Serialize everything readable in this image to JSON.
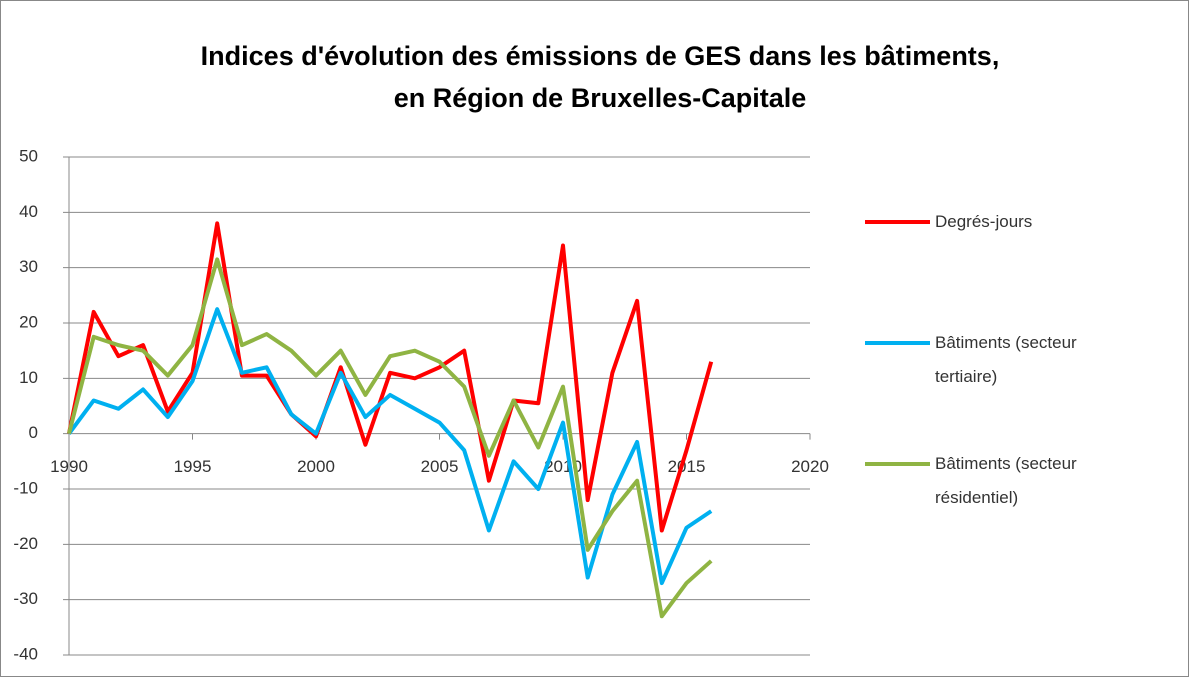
{
  "chart_data": {
    "type": "line",
    "title": [
      "Indices d'évolution des émissions de GES dans les bâtiments,",
      "en Région de Bruxelles-Capitale"
    ],
    "x": [
      1990,
      1991,
      1992,
      1993,
      1994,
      1995,
      1996,
      1997,
      1998,
      1999,
      2000,
      2001,
      2002,
      2003,
      2004,
      2005,
      2006,
      2007,
      2008,
      2009,
      2010,
      2011,
      2012,
      2013,
      2014,
      2015,
      2016
    ],
    "series": [
      {
        "name": "Degrés-jours",
        "color": "#ff0000",
        "values": [
          0,
          22,
          14,
          16,
          4,
          11,
          38,
          10.5,
          10.5,
          3.5,
          -0.5,
          12,
          -2,
          11,
          10,
          12,
          15,
          -8.5,
          6,
          5.5,
          34,
          -12,
          11,
          24,
          -17.5,
          -3,
          13
        ]
      },
      {
        "name": "Bâtiments (secteur tertiaire)",
        "color": "#00b0f0",
        "values": [
          0,
          6,
          4.5,
          8,
          3,
          9.5,
          22.5,
          11,
          12,
          3.5,
          0,
          11,
          3,
          7,
          4.5,
          2,
          -3,
          -17.5,
          -5,
          -10,
          2,
          -26,
          -11,
          -1.5,
          -27,
          -17,
          -14
        ]
      },
      {
        "name": "Bâtiments (secteur résidentiel)",
        "color": "#8fb443",
        "values": [
          0,
          17.5,
          16,
          15,
          10.5,
          16,
          31.5,
          16,
          18,
          15,
          10.5,
          15,
          7,
          14,
          15,
          13,
          8.5,
          -4,
          6,
          -2.5,
          8.5,
          -21,
          -14,
          -8.5,
          -33,
          -27,
          -23
        ]
      }
    ],
    "xlim": [
      1990,
      2020
    ],
    "xticks": [
      1990,
      1995,
      2000,
      2005,
      2010,
      2015,
      2020
    ],
    "ylim": [
      -40,
      50
    ],
    "yticks": [
      -40,
      -30,
      -20,
      -10,
      0,
      10,
      20,
      30,
      40,
      50
    ],
    "grid": true,
    "legend": "right"
  }
}
